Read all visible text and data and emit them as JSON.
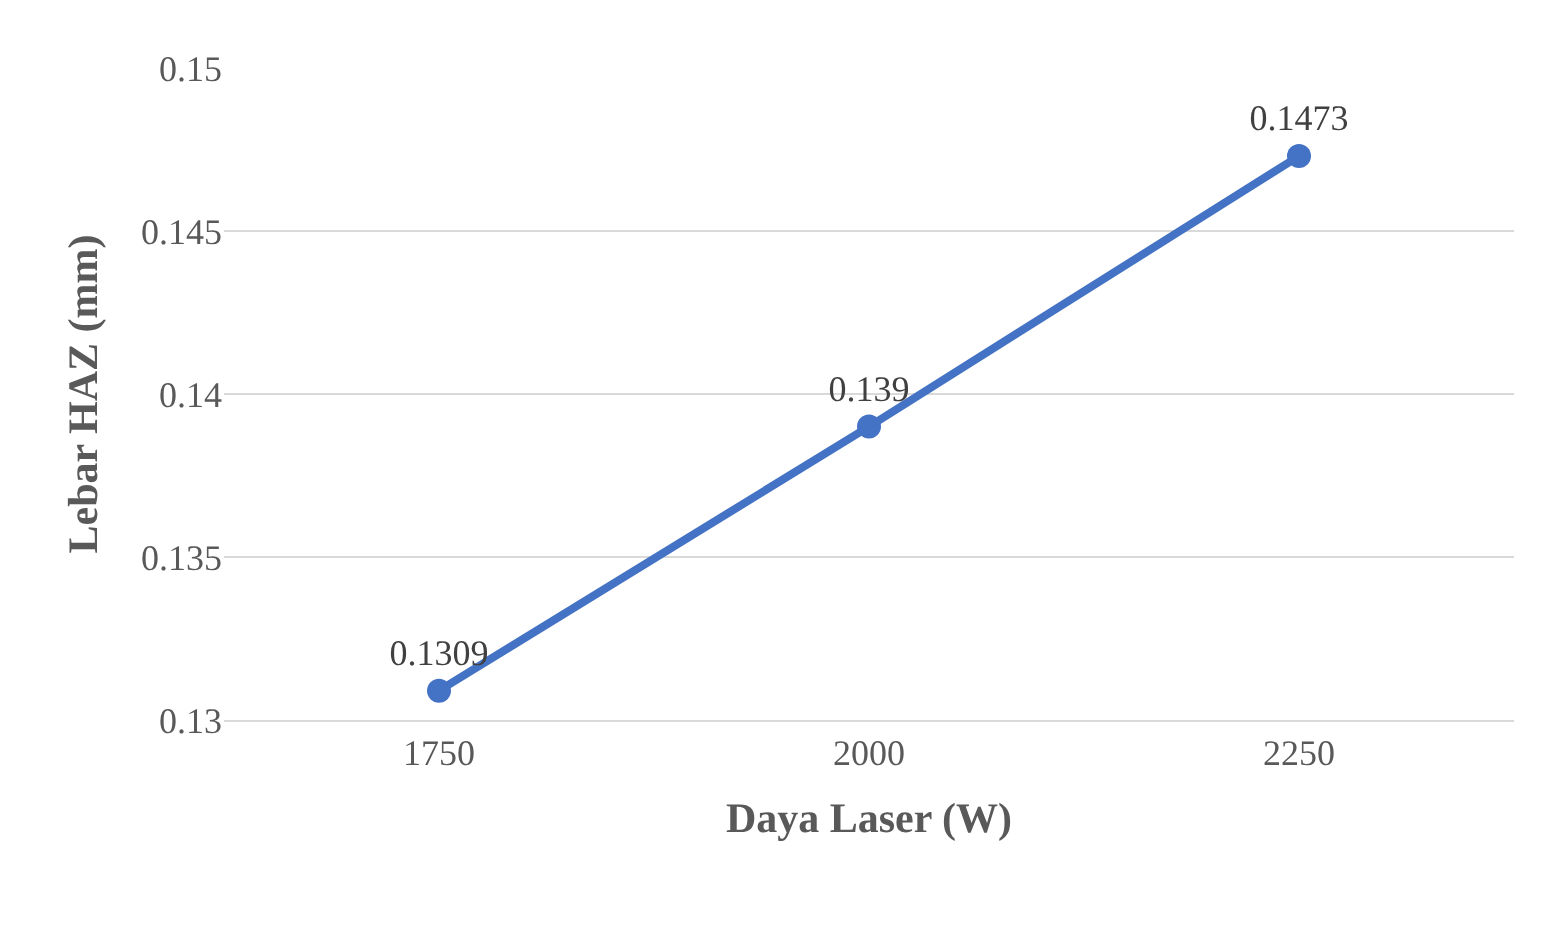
{
  "chart_data": {
    "type": "line",
    "xlabel": "Daya Laser (W)",
    "ylabel": "Lebar HAZ (mm)",
    "categories": [
      "1750",
      "2000",
      "2250"
    ],
    "series": [
      {
        "color": "#4472c4",
        "values": [
          0.1309,
          0.139,
          0.1473
        ]
      }
    ],
    "ylim": [
      0.13,
      0.15
    ],
    "yticks": [
      0.13,
      0.135,
      0.14,
      0.145,
      0.15
    ],
    "grid": "y",
    "marker": "circle",
    "line_style": "solid",
    "data_labels": true
  }
}
